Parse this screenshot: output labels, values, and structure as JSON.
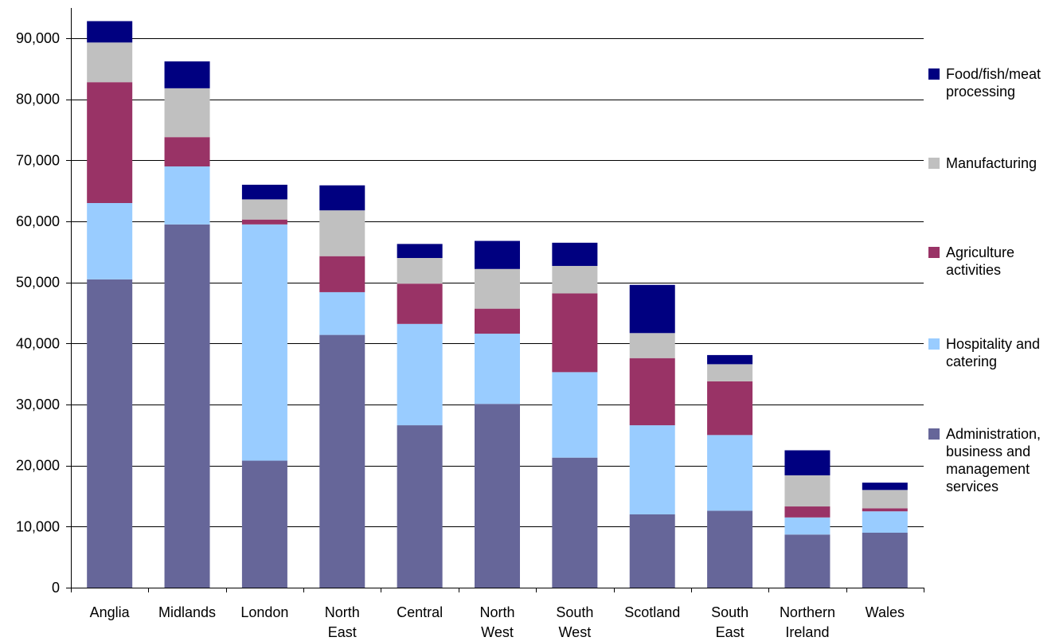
{
  "chart_data": {
    "type": "bar",
    "stacked": true,
    "categories": [
      [
        "Anglia"
      ],
      [
        "Midlands"
      ],
      [
        "London"
      ],
      [
        "North",
        "East"
      ],
      [
        "Central"
      ],
      [
        "North",
        "West"
      ],
      [
        "South",
        "West"
      ],
      [
        "Scotland"
      ],
      [
        "South",
        "East"
      ],
      [
        "Northern",
        "Ireland"
      ],
      [
        "Wales"
      ]
    ],
    "series": [
      {
        "name": "Administration, business and management services",
        "legend_lines": [
          "Administration,",
          "business and",
          "management",
          "services"
        ],
        "color": "#666699",
        "values": [
          50500,
          59500,
          20800,
          41400,
          26600,
          30100,
          21300,
          12000,
          12600,
          8700,
          9000
        ]
      },
      {
        "name": "Hospitality and catering",
        "legend_lines": [
          "Hospitality and",
          "catering"
        ],
        "color": "#99ccff",
        "values": [
          12500,
          9500,
          38700,
          7000,
          16600,
          11500,
          14000,
          14600,
          12400,
          2800,
          3500
        ]
      },
      {
        "name": "Agriculture activities",
        "legend_lines": [
          "Agriculture",
          "activities"
        ],
        "color": "#993366",
        "values": [
          19800,
          4800,
          800,
          5900,
          6600,
          4100,
          12900,
          11000,
          8800,
          1800,
          500
        ]
      },
      {
        "name": "Manufacturing",
        "legend_lines": [
          "Manufacturing"
        ],
        "color": "#c0c0c0",
        "values": [
          6500,
          8000,
          3300,
          7500,
          4200,
          6500,
          4500,
          4100,
          2800,
          5100,
          3000
        ]
      },
      {
        "name": "Food/fish/meat processing",
        "legend_lines": [
          "Food/fish/meat",
          "processing"
        ],
        "color": "#000080",
        "values": [
          3500,
          4400,
          2400,
          4100,
          2300,
          4600,
          3800,
          7900,
          1500,
          4100,
          1200
        ]
      }
    ],
    "xlabel": "",
    "ylabel": "",
    "ylim": [
      0,
      90000
    ],
    "yticks": [
      0,
      10000,
      20000,
      30000,
      40000,
      50000,
      60000,
      70000,
      80000,
      90000
    ],
    "ytick_labels": [
      "0",
      "10,000",
      "20,000",
      "30,000",
      "40,000",
      "50,000",
      "60,000",
      "70,000",
      "80,000",
      "90,000"
    ],
    "grid": true,
    "legend_position": "right",
    "legend_order": [
      4,
      3,
      2,
      1,
      0
    ]
  }
}
